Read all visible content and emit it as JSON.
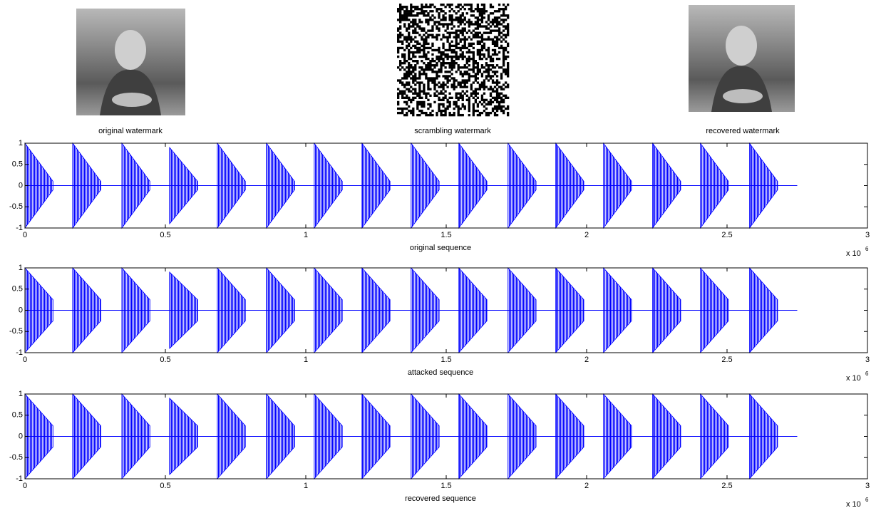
{
  "images": [
    {
      "label": "original watermark"
    },
    {
      "label": "scrambling watermark"
    },
    {
      "label": "recovered watermark"
    }
  ],
  "chart_data": [
    {
      "type": "burst",
      "xlabel": "original sequence",
      "color": "#0000ff",
      "xlim": [
        0,
        3
      ],
      "xticks": [
        0,
        0.5,
        1,
        1.5,
        2,
        2.5,
        3
      ],
      "ylim": [
        -1,
        1
      ],
      "yticks": [
        -1,
        -0.5,
        0,
        0.5,
        1
      ],
      "x_scale_label": "x 10",
      "x_scale_exponent": "6",
      "baseline": {
        "x": [
          0,
          2.75
        ],
        "values": [
          0,
          0
        ]
      },
      "bursts": {
        "start": [
          0,
          0.17,
          0.345,
          0.515,
          0.685,
          0.86,
          1.03,
          1.2,
          1.375,
          1.545,
          1.72,
          1.89,
          2.06,
          2.235,
          2.405,
          2.58
        ],
        "end": [
          0.1,
          0.27,
          0.445,
          0.615,
          0.785,
          0.96,
          1.13,
          1.3,
          1.475,
          1.645,
          1.82,
          1.99,
          2.16,
          2.335,
          2.505,
          2.68
        ],
        "peak": [
          1,
          1,
          1,
          0.9,
          1,
          1,
          1,
          1,
          1,
          1,
          1,
          1,
          1,
          1,
          1,
          1
        ],
        "tail": [
          0.1,
          0.1,
          0.1,
          0.1,
          0.1,
          0.1,
          0.1,
          0.1,
          0.1,
          0.1,
          0.1,
          0.1,
          0.1,
          0.1,
          0.1,
          0.1
        ]
      }
    },
    {
      "type": "burst",
      "xlabel": "attacked sequence",
      "color": "#0000ff",
      "xlim": [
        0,
        3
      ],
      "xticks": [
        0,
        0.5,
        1,
        1.5,
        2,
        2.5,
        3
      ],
      "ylim": [
        -1,
        1
      ],
      "yticks": [
        -1,
        -0.5,
        0,
        0.5,
        1
      ],
      "x_scale_label": "x 10",
      "x_scale_exponent": "6",
      "baseline": {
        "x": [
          0,
          2.75
        ],
        "values": [
          0,
          0
        ]
      },
      "bursts": {
        "start": [
          0,
          0.17,
          0.345,
          0.515,
          0.685,
          0.86,
          1.03,
          1.2,
          1.375,
          1.545,
          1.72,
          1.89,
          2.06,
          2.235,
          2.405,
          2.58
        ],
        "end": [
          0.1,
          0.27,
          0.445,
          0.615,
          0.785,
          0.96,
          1.13,
          1.3,
          1.475,
          1.645,
          1.82,
          1.99,
          2.16,
          2.335,
          2.505,
          2.68
        ],
        "peak": [
          1,
          1,
          1,
          0.9,
          1,
          1,
          1,
          1,
          1,
          1,
          1,
          1,
          1,
          1,
          1,
          1
        ],
        "tail": [
          0.25,
          0.25,
          0.25,
          0.25,
          0.25,
          0.25,
          0.25,
          0.25,
          0.25,
          0.25,
          0.25,
          0.25,
          0.25,
          0.25,
          0.25,
          0.25
        ]
      }
    },
    {
      "type": "burst",
      "xlabel": "recovered sequence",
      "color": "#0000ff",
      "xlim": [
        0,
        3
      ],
      "xticks": [
        0,
        0.5,
        1,
        1.5,
        2,
        2.5,
        3
      ],
      "ylim": [
        -1,
        1
      ],
      "yticks": [
        -1,
        -0.5,
        0,
        0.5,
        1
      ],
      "x_scale_label": "x 10",
      "x_scale_exponent": "6",
      "baseline": {
        "x": [
          0,
          2.75
        ],
        "values": [
          0,
          0
        ]
      },
      "bursts": {
        "start": [
          0,
          0.17,
          0.345,
          0.515,
          0.685,
          0.86,
          1.03,
          1.2,
          1.375,
          1.545,
          1.72,
          1.89,
          2.06,
          2.235,
          2.405,
          2.58
        ],
        "end": [
          0.1,
          0.27,
          0.445,
          0.615,
          0.785,
          0.96,
          1.13,
          1.3,
          1.475,
          1.645,
          1.82,
          1.99,
          2.16,
          2.335,
          2.505,
          2.68
        ],
        "peak": [
          1,
          1,
          1,
          0.9,
          1,
          1,
          1,
          1,
          1,
          1,
          1,
          1,
          1,
          1,
          1,
          1
        ],
        "tail": [
          0.25,
          0.25,
          0.25,
          0.25,
          0.25,
          0.25,
          0.25,
          0.25,
          0.25,
          0.25,
          0.25,
          0.25,
          0.25,
          0.25,
          0.25,
          0.25
        ]
      }
    }
  ]
}
